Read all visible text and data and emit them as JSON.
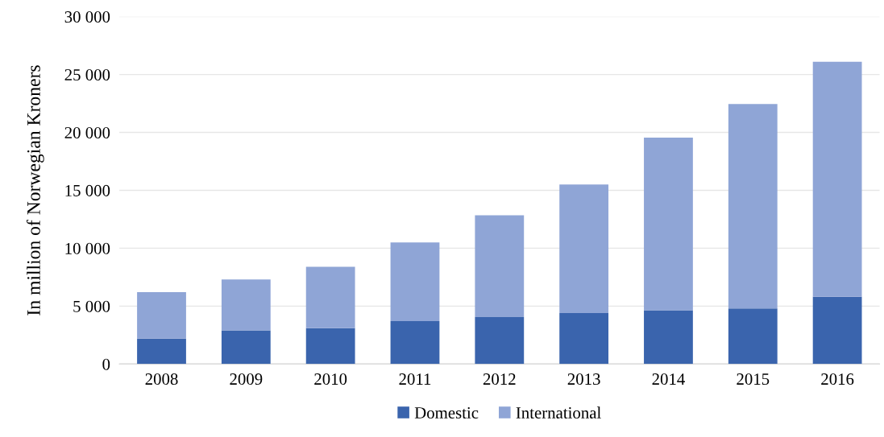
{
  "chart_data": {
    "type": "bar",
    "stacked": true,
    "ylabel": "In million of Norwegian Kroners",
    "categories": [
      "2008",
      "2009",
      "2010",
      "2011",
      "2012",
      "2013",
      "2014",
      "2015",
      "2016"
    ],
    "series": [
      {
        "name": "Domestic",
        "color": "#3a64ad",
        "values": [
          2200,
          2900,
          3100,
          3700,
          4050,
          4400,
          4650,
          4800,
          5800
        ]
      },
      {
        "name": "International",
        "color": "#8fa5d6",
        "values": [
          4000,
          4400,
          5300,
          6800,
          8800,
          11100,
          14900,
          17650,
          20300
        ]
      }
    ],
    "ylim": [
      0,
      30000
    ],
    "yticks": [
      {
        "value": 0,
        "label": "0"
      },
      {
        "value": 5000,
        "label": "5 000"
      },
      {
        "value": 10000,
        "label": "10 000"
      },
      {
        "value": 15000,
        "label": "15 000"
      },
      {
        "value": 20000,
        "label": "20 000"
      },
      {
        "value": 25000,
        "label": "25 000"
      },
      {
        "value": 30000,
        "label": "30 000"
      }
    ],
    "grid": "y",
    "legend": "bottom"
  }
}
